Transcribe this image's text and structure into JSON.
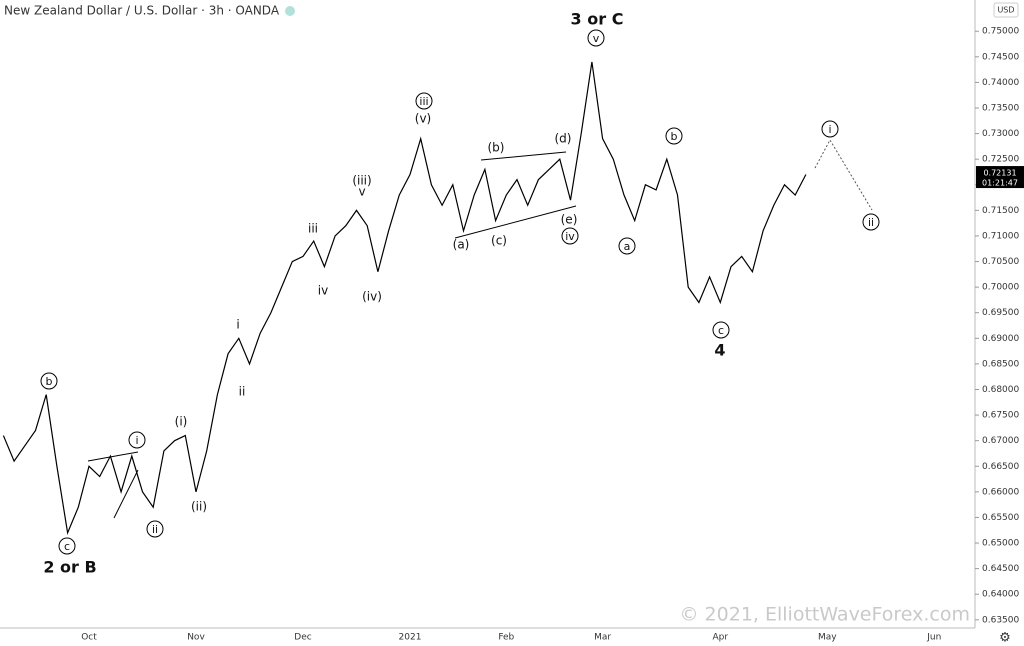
{
  "chart_data": {
    "type": "line",
    "title": "New Zealand Dollar / U.S. Dollar · 3h · OANDA",
    "currency": "USD",
    "watermark": "© 2021, ElliottWaveForex.com",
    "last_price": 0.72131,
    "countdown": "01:21:47",
    "categories": [
      null,
      null,
      null,
      null,
      null,
      null,
      null,
      null,
      "Oct",
      null,
      null,
      null,
      null,
      null,
      null,
      null,
      null,
      null,
      "Nov",
      null,
      null,
      null,
      null,
      null,
      null,
      null,
      null,
      null,
      "Dec",
      null,
      null,
      null,
      null,
      null,
      null,
      null,
      null,
      null,
      "2021",
      null,
      null,
      null,
      null,
      null,
      null,
      null,
      null,
      "Feb",
      null,
      null,
      null,
      null,
      null,
      null,
      null,
      null,
      "Mar",
      null,
      null,
      null,
      null,
      null,
      null,
      null,
      null,
      null,
      null,
      "Apr",
      null,
      null,
      null,
      null,
      null,
      null,
      null,
      null,
      null,
      "May",
      null,
      null,
      null,
      null,
      null,
      null,
      null,
      null,
      null,
      "Jun",
      null,
      null
    ],
    "series": [
      {
        "name": "NZD/USD",
        "color": "#000000",
        "values": [
          0.671,
          0.666,
          0.669,
          0.672,
          0.679,
          0.665,
          0.652,
          0.657,
          0.665,
          0.663,
          0.667,
          0.66,
          0.667,
          0.66,
          0.657,
          0.668,
          0.67,
          0.671,
          0.66,
          0.668,
          0.679,
          0.687,
          0.69,
          0.685,
          0.691,
          0.695,
          0.7,
          0.705,
          0.706,
          0.709,
          0.704,
          0.71,
          0.712,
          0.715,
          0.712,
          0.703,
          0.711,
          0.718,
          0.722,
          0.729,
          0.72,
          0.716,
          0.72,
          0.711,
          0.718,
          0.723,
          0.713,
          0.718,
          0.721,
          0.716,
          0.721,
          0.723,
          0.725,
          0.717,
          0.73,
          0.744,
          0.729,
          0.725,
          0.718,
          0.713,
          0.72,
          0.719,
          0.725,
          0.718,
          0.7,
          0.697,
          0.702,
          0.697,
          0.704,
          0.706,
          0.703,
          0.711,
          0.716,
          0.72,
          0.718,
          0.722,
          null,
          null,
          null,
          null,
          null,
          null,
          null,
          null,
          null,
          null,
          null,
          null,
          null,
          null
        ]
      }
    ],
    "ylim": [
      0.6334,
      0.7561
    ],
    "yticks": [
      {
        "value": 0.635,
        "label": "0.63500"
      },
      {
        "value": 0.64,
        "label": "0.64000"
      },
      {
        "value": 0.645,
        "label": "0.64500"
      },
      {
        "value": 0.65,
        "label": "0.65000"
      },
      {
        "value": 0.655,
        "label": "0.65500"
      },
      {
        "value": 0.66,
        "label": "0.66000"
      },
      {
        "value": 0.665,
        "label": "0.66500"
      },
      {
        "value": 0.67,
        "label": "0.67000"
      },
      {
        "value": 0.675,
        "label": "0.67500"
      },
      {
        "value": 0.68,
        "label": "0.68000"
      },
      {
        "value": 0.685,
        "label": "0.68500"
      },
      {
        "value": 0.69,
        "label": "0.69000"
      },
      {
        "value": 0.695,
        "label": "0.69500"
      },
      {
        "value": 0.7,
        "label": "0.70000"
      },
      {
        "value": 0.705,
        "label": "0.70500"
      },
      {
        "value": 0.71,
        "label": "0.71000"
      },
      {
        "value": 0.715,
        "label": "0.71500"
      },
      {
        "value": 0.72,
        "label": "0.72000"
      },
      {
        "value": 0.725,
        "label": "0.72500"
      },
      {
        "value": 0.73,
        "label": "0.73000"
      },
      {
        "value": 0.735,
        "label": "0.73500"
      },
      {
        "value": 0.74,
        "label": "0.74000"
      },
      {
        "value": 0.745,
        "label": "0.74500"
      },
      {
        "value": 0.75,
        "label": "0.75000"
      }
    ],
    "annotations": [
      "2 or B",
      "3 or C",
      "4",
      "b",
      "c",
      "i",
      "ii",
      "iii",
      "v",
      "iv",
      "a",
      "b",
      "c",
      "i",
      "ii",
      "(i)",
      "(ii)",
      "i",
      "ii",
      "iii",
      "iv",
      "v",
      "(iii)",
      "(iv)",
      "(v)",
      "(a)",
      "(b)",
      "(c)",
      "(d)",
      "(e)"
    ]
  }
}
